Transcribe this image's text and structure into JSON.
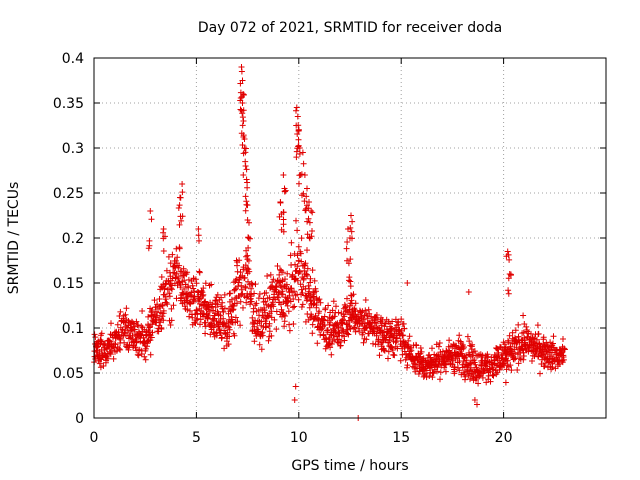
{
  "chart_data": {
    "type": "scatter",
    "title": "Day 072 of 2021, SRMTID for receiver doda",
    "xlabel": "GPS time / hours",
    "ylabel": "SRMTID / TECUs",
    "xlim": [
      0,
      25
    ],
    "ylim": [
      0,
      0.4
    ],
    "xticks": [
      0,
      5,
      10,
      15,
      20
    ],
    "xtick_labels": [
      "0",
      "5",
      "10",
      "15",
      "20"
    ],
    "yticks": [
      0,
      0.05,
      0.1,
      0.15,
      0.2,
      0.25,
      0.3,
      0.35,
      0.4
    ],
    "ytick_labels": [
      "0",
      "0.05",
      "0.1",
      "0.15",
      "0.2",
      "0.25",
      "0.3",
      "0.35",
      "0.4"
    ],
    "grid": true,
    "marker": "+",
    "series": [
      {
        "name": "SRMTID",
        "color": "#e00000",
        "anchors": {
          "x": [
            0,
            0.5,
            1,
            1.5,
            2,
            2.5,
            3,
            3.5,
            4,
            4.5,
            5,
            5.5,
            6,
            6.5,
            7,
            7.5,
            8,
            8.5,
            9,
            9.5,
            10,
            10.5,
            11,
            11.5,
            12,
            12.5,
            13,
            13.5,
            14,
            14.5,
            15,
            15.5,
            16,
            16.5,
            17,
            17.5,
            18,
            18.5,
            19,
            19.5,
            20,
            20.5,
            21,
            21.5,
            22,
            22.5,
            23
          ],
          "y": [
            0.08,
            0.075,
            0.085,
            0.1,
            0.09,
            0.085,
            0.11,
            0.14,
            0.16,
            0.14,
            0.13,
            0.12,
            0.115,
            0.1,
            0.14,
            0.15,
            0.1,
            0.12,
            0.14,
            0.13,
            0.17,
            0.14,
            0.11,
            0.095,
            0.1,
            0.12,
            0.11,
            0.1,
            0.095,
            0.09,
            0.09,
            0.07,
            0.06,
            0.06,
            0.065,
            0.07,
            0.07,
            0.06,
            0.055,
            0.06,
            0.065,
            0.075,
            0.085,
            0.08,
            0.075,
            0.07,
            0.07
          ],
          "spread": [
            0.025,
            0.03,
            0.035,
            0.03,
            0.03,
            0.035,
            0.04,
            0.05,
            0.05,
            0.04,
            0.04,
            0.04,
            0.04,
            0.04,
            0.05,
            0.05,
            0.04,
            0.045,
            0.05,
            0.05,
            0.06,
            0.05,
            0.04,
            0.035,
            0.035,
            0.04,
            0.035,
            0.03,
            0.03,
            0.03,
            0.03,
            0.025,
            0.025,
            0.025,
            0.025,
            0.025,
            0.03,
            0.03,
            0.025,
            0.025,
            0.03,
            0.03,
            0.03,
            0.025,
            0.025,
            0.025,
            0.025
          ]
        },
        "spikes": [
          {
            "x": 2.75,
            "y": 0.23
          },
          {
            "x": 3.4,
            "y": 0.21
          },
          {
            "x": 4.3,
            "y": 0.26
          },
          {
            "x": 4.2,
            "y": 0.245
          },
          {
            "x": 5.1,
            "y": 0.21
          },
          {
            "x": 7.2,
            "y": 0.39
          },
          {
            "x": 7.22,
            "y": 0.385
          },
          {
            "x": 7.25,
            "y": 0.375
          },
          {
            "x": 7.28,
            "y": 0.36
          },
          {
            "x": 7.3,
            "y": 0.33
          },
          {
            "x": 7.35,
            "y": 0.31
          },
          {
            "x": 7.4,
            "y": 0.28
          },
          {
            "x": 7.45,
            "y": 0.265
          },
          {
            "x": 7.5,
            "y": 0.22
          },
          {
            "x": 7.55,
            "y": 0.2
          },
          {
            "x": 9.25,
            "y": 0.27
          },
          {
            "x": 9.3,
            "y": 0.255
          },
          {
            "x": 9.1,
            "y": 0.24
          },
          {
            "x": 9.9,
            "y": 0.345
          },
          {
            "x": 9.95,
            "y": 0.335
          },
          {
            "x": 10.0,
            "y": 0.32
          },
          {
            "x": 10.05,
            "y": 0.3
          },
          {
            "x": 10.2,
            "y": 0.295
          },
          {
            "x": 10.3,
            "y": 0.27
          },
          {
            "x": 10.4,
            "y": 0.255
          },
          {
            "x": 10.5,
            "y": 0.24
          },
          {
            "x": 10.6,
            "y": 0.23
          },
          {
            "x": 9.8,
            "y": 0.02
          },
          {
            "x": 9.85,
            "y": 0.035
          },
          {
            "x": 12.4,
            "y": 0.21
          },
          {
            "x": 12.5,
            "y": 0.2
          },
          {
            "x": 12.55,
            "y": 0.225
          },
          {
            "x": 15.3,
            "y": 0.15
          },
          {
            "x": 18.3,
            "y": 0.14
          },
          {
            "x": 18.6,
            "y": 0.02
          },
          {
            "x": 18.7,
            "y": 0.015
          },
          {
            "x": 20.2,
            "y": 0.185
          },
          {
            "x": 20.3,
            "y": 0.16
          },
          {
            "x": 12.9,
            "y": 0.0
          }
        ]
      }
    ]
  }
}
